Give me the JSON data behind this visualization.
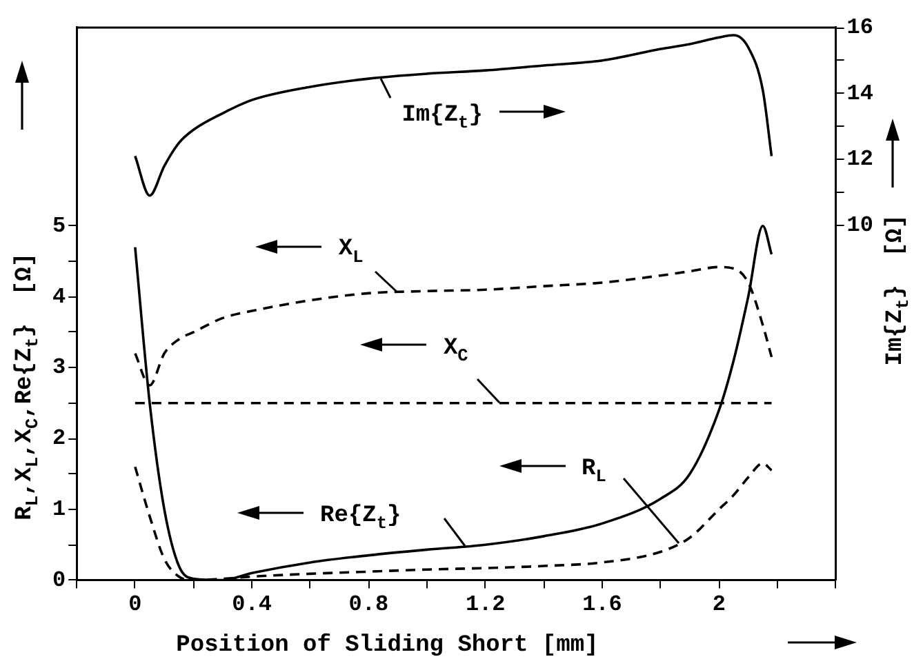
{
  "chart_data": {
    "type": "line",
    "xlabel": "Position of Sliding Short [mm]",
    "ylabel": "R$_{L}$,X$_{L}$,X$_{C}$,Re{Z$_{t}$}  [Ω]",
    "y2label": "Im{Z$_{t}$}  [Ω]",
    "annotations": [
      "Im{Z$_{t}$}",
      {
        "text": "X$_{L}$",
        "x": 0.9,
        "y": 4.07
      },
      {
        "text": "X$_{C}$",
        "x": 1.25,
        "y": 2.5
      },
      {
        "text": "Re{Z$_{t}$}",
        "x": 1.13,
        "y": 0.48
      },
      {
        "text": "R$_{L}$",
        "x": 1.86,
        "y": 0.52
      }
    ],
    "x": [
      0,
      0.05,
      0.1,
      0.15,
      0.2,
      0.3,
      0.4,
      0.6,
      0.8,
      1.0,
      1.2,
      1.4,
      1.6,
      1.8,
      1.9,
      2.0,
      2.05,
      2.1,
      2.15,
      2.18
    ],
    "series": [
      {
        "axis": "y2",
        "color": "#000000",
        "line_style": "solid",
        "values": [
          12.1,
          10.9,
          11.8,
          12.5,
          12.9,
          13.4,
          13.8,
          14.2,
          14.45,
          14.6,
          14.7,
          14.85,
          15.0,
          15.35,
          15.5,
          15.7,
          15.77,
          15.4,
          14.1,
          12.1
        ]
      },
      {
        "color": "#000000",
        "line_style": "dashed",
        "values": [
          3.2,
          2.75,
          3.2,
          3.4,
          3.5,
          3.7,
          3.8,
          3.95,
          4.05,
          4.08,
          4.1,
          4.15,
          4.2,
          4.3,
          4.36,
          4.42,
          4.4,
          4.2,
          3.6,
          3.15
        ]
      },
      {
        "color": "#000000",
        "line_style": "dashed",
        "values": [
          2.5,
          2.5,
          2.5,
          2.5,
          2.5,
          2.5,
          2.5,
          2.5,
          2.5,
          2.5,
          2.5,
          2.5,
          2.5,
          2.5,
          2.5,
          2.5,
          2.5,
          2.5,
          2.5,
          2.5
        ]
      },
      {
        "color": "#000000",
        "line_style": "solid",
        "values": [
          4.7,
          2.5,
          1.0,
          0.2,
          0.02,
          0,
          0.1,
          0.25,
          0.35,
          0.43,
          0.5,
          0.62,
          0.8,
          1.15,
          1.5,
          2.4,
          3.1,
          4.0,
          5.0,
          4.6
        ]
      },
      {
        "color": "#000000",
        "line_style": "dashed",
        "values": [
          1.6,
          0.9,
          0.3,
          0.05,
          0,
          0.02,
          0.05,
          0.09,
          0.12,
          0.15,
          0.17,
          0.2,
          0.25,
          0.4,
          0.6,
          1.0,
          1.2,
          1.45,
          1.65,
          1.55
        ]
      }
    ],
    "xlim": [
      -0.2,
      2.4
    ],
    "xticks": [
      {
        "value": -0.2,
        "label": null
      },
      0,
      {
        "value": 0.2,
        "label": null
      },
      0.4,
      {
        "value": 0.6,
        "label": null
      },
      0.8,
      {
        "value": 1.0,
        "label": null
      },
      1.2,
      {
        "value": 1.4,
        "label": null
      },
      1.6,
      {
        "value": 1.8,
        "label": null
      },
      2,
      {
        "value": 2.2,
        "label": null
      },
      {
        "value": 2.4,
        "label": null
      }
    ],
    "ylim": [
      0,
      7.8
    ],
    "yticks": [
      0,
      {
        "value": 0.5,
        "label": null
      },
      1,
      {
        "value": 1.5,
        "label": null
      },
      2,
      {
        "value": 2.5,
        "label": null
      },
      3,
      {
        "value": 3.5,
        "label": null
      },
      4,
      {
        "value": 4.5,
        "label": null
      },
      5
    ],
    "y2lim": [
      -0.77,
      16
    ],
    "y2ticks": [
      10,
      {
        "value": 11,
        "label": null
      },
      12,
      {
        "value": 13,
        "label": null
      },
      14,
      {
        "value": 15,
        "label": null
      },
      16
    ],
    "grid": false,
    "legend": false,
    "marker": "none"
  }
}
